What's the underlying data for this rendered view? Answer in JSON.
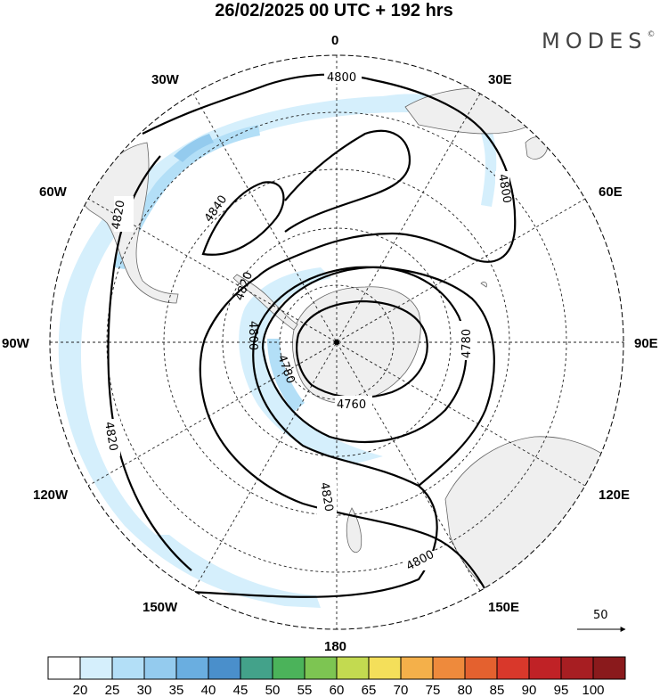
{
  "header": {
    "title": "26/02/2025  00 UTC  + 192 hrs",
    "brand": "MODES",
    "brand_mark": "©"
  },
  "map": {
    "projection": "polar stereographic (south pole)",
    "longitude_labels": [
      {
        "text": "0",
        "lon": 0
      },
      {
        "text": "30E",
        "lon": 30
      },
      {
        "text": "60E",
        "lon": 60
      },
      {
        "text": "90E",
        "lon": 90
      },
      {
        "text": "120E",
        "lon": 120
      },
      {
        "text": "150E",
        "lon": 150
      },
      {
        "text": "180",
        "lon": 180
      },
      {
        "text": "150W",
        "lon": -150
      },
      {
        "text": "120W",
        "lon": -120
      },
      {
        "text": "90W",
        "lon": -90
      },
      {
        "text": "60W",
        "lon": -60
      },
      {
        "text": "30W",
        "lon": -30
      }
    ],
    "contour_labels": [
      {
        "text": "4800",
        "at": "top"
      },
      {
        "text": "4800",
        "at": "east"
      },
      {
        "text": "4800",
        "at": "south-east"
      },
      {
        "text": "4840",
        "at": "west-high"
      },
      {
        "text": "4820",
        "at": "west"
      },
      {
        "text": "4820",
        "at": "center-left"
      },
      {
        "text": "4820",
        "at": "south-west"
      },
      {
        "text": "4820",
        "at": "south"
      },
      {
        "text": "4800",
        "at": "center-west"
      },
      {
        "text": "4780",
        "at": "center"
      },
      {
        "text": "4780",
        "at": "east-inner"
      },
      {
        "text": "4760",
        "at": "center-south"
      }
    ],
    "reference_vector": "50",
    "colors": {
      "land": "#efefef",
      "wind_shading": [
        "#d5effc",
        "#b3dff7",
        "#94cbee"
      ]
    }
  },
  "colorbar": {
    "labels": [
      "20",
      "25",
      "30",
      "35",
      "40",
      "45",
      "50",
      "55",
      "60",
      "65",
      "70",
      "75",
      "80",
      "85",
      "90",
      "95",
      "100"
    ],
    "colors": [
      "#ffffff",
      "#d5effc",
      "#b3dff7",
      "#94cbee",
      "#6aaee0",
      "#4a8fcb",
      "#43a28a",
      "#4bb35a",
      "#7dc552",
      "#c3da50",
      "#f4df5a",
      "#f4b04a",
      "#ee8a3c",
      "#e4612f",
      "#d9382b",
      "#c02226",
      "#a71e22",
      "#8a1a1c"
    ]
  }
}
